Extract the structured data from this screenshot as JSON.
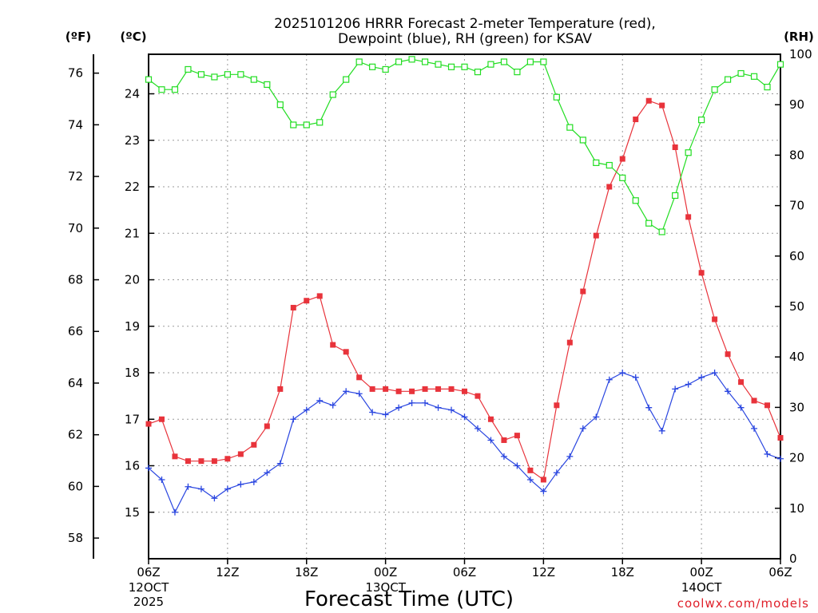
{
  "chart_data": {
    "type": "line",
    "title_line1": "2025101206 HRRR Forecast 2-meter Temperature (red),",
    "title_line2": "Dewpoint (blue), RH (green) for KSAV",
    "xlabel": "Forecast Time (UTC)",
    "credit": "coolwx.com/models",
    "units": {
      "fahrenheit": "(ºF)",
      "celsius": "(ºC)",
      "rh": "(RH)"
    },
    "x_range_hours": [
      0,
      48
    ],
    "x_ticks": [
      {
        "hour": 0,
        "label": "06Z",
        "sub1": "12OCT",
        "sub2": "2025"
      },
      {
        "hour": 6,
        "label": "12Z"
      },
      {
        "hour": 12,
        "label": "18Z"
      },
      {
        "hour": 18,
        "label": "00Z",
        "sub1": "13OCT"
      },
      {
        "hour": 24,
        "label": "06Z"
      },
      {
        "hour": 30,
        "label": "12Z"
      },
      {
        "hour": 36,
        "label": "18Z"
      },
      {
        "hour": 42,
        "label": "00Z",
        "sub1": "14OCT"
      },
      {
        "hour": 48,
        "label": "06Z"
      }
    ],
    "y_celsius": {
      "range": [
        14.0,
        24.85
      ],
      "ticks": [
        "15",
        "16",
        "17",
        "18",
        "19",
        "20",
        "21",
        "22",
        "23",
        "24"
      ]
    },
    "y_fahrenheit": {
      "ticks": [
        "58",
        "60",
        "62",
        "64",
        "66",
        "68",
        "70",
        "72",
        "74",
        "76"
      ]
    },
    "y_rh": {
      "range": [
        0,
        100
      ],
      "ticks": [
        "0",
        "10",
        "20",
        "30",
        "40",
        "50",
        "60",
        "70",
        "80",
        "90",
        "100"
      ]
    },
    "series": [
      {
        "name": "2-meter Temperature",
        "unit": "C",
        "color": "#e8333b",
        "marker": "filled-square",
        "values": [
          16.9,
          17.0,
          16.2,
          16.1,
          16.1,
          16.1,
          16.15,
          16.25,
          16.45,
          16.85,
          17.65,
          19.4,
          19.55,
          19.65,
          18.6,
          18.45,
          17.9,
          17.65,
          17.65,
          17.6,
          17.6,
          17.65,
          17.65,
          17.65,
          17.6,
          17.5,
          17.0,
          16.55,
          16.65,
          15.9,
          15.7,
          17.3,
          18.65,
          19.75,
          20.95,
          22.0,
          22.6,
          23.45,
          23.85,
          23.75,
          22.85,
          21.35,
          20.15,
          19.15,
          18.4,
          17.8,
          17.4,
          17.3,
          16.6
        ]
      },
      {
        "name": "Dewpoint",
        "unit": "C",
        "color": "#2a46e0",
        "marker": "plus",
        "values": [
          15.95,
          15.7,
          15.0,
          15.55,
          15.5,
          15.3,
          15.5,
          15.6,
          15.65,
          15.85,
          16.05,
          17.0,
          17.2,
          17.4,
          17.3,
          17.6,
          17.55,
          17.15,
          17.1,
          17.25,
          17.35,
          17.35,
          17.25,
          17.2,
          17.05,
          16.8,
          16.55,
          16.2,
          16.0,
          15.7,
          15.45,
          15.85,
          16.2,
          16.8,
          17.05,
          17.85,
          18.0,
          17.9,
          17.25,
          16.75,
          17.65,
          17.75,
          17.9,
          18.0,
          17.6,
          17.25,
          16.8,
          16.25,
          16.15
        ]
      },
      {
        "name": "Relative Humidity",
        "unit": "%",
        "color": "#22dd22",
        "marker": "open-square",
        "values": [
          95,
          93,
          93,
          97,
          96,
          95.5,
          96,
          96,
          95,
          94,
          90,
          86,
          86,
          86.5,
          92,
          95,
          98.5,
          97.5,
          97,
          98.5,
          99,
          98.5,
          98,
          97.5,
          97.5,
          96.5,
          98,
          98.5,
          96.5,
          98.5,
          98.5,
          91.5,
          85.5,
          83,
          78.5,
          78,
          75.5,
          71,
          66.5,
          64.8,
          72,
          80.5,
          87,
          93,
          95,
          96.2,
          95.6,
          93.5,
          98
        ]
      }
    ]
  }
}
